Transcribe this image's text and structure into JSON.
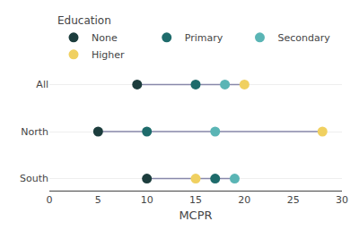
{
  "chart_data": {
    "type": "dot",
    "title": "Education",
    "xlabel": "MCPR",
    "categories": [
      "All",
      "North",
      "South"
    ],
    "series": [
      {
        "name": "None",
        "color": "#1c3d3d",
        "values": [
          9,
          5,
          10
        ]
      },
      {
        "name": "Primary",
        "color": "#1e6b6b",
        "values": [
          15,
          10,
          17
        ]
      },
      {
        "name": "Secondary",
        "color": "#5ab5b5",
        "values": [
          18,
          17,
          19
        ]
      },
      {
        "name": "Higher",
        "color": "#f0d060",
        "values": [
          20,
          28,
          15
        ]
      }
    ],
    "color": "#8888aa",
    "marker": "circle",
    "xlim": [
      0,
      30
    ],
    "xticks": [
      0,
      5,
      10,
      15,
      20,
      25,
      30
    ],
    "grid": true,
    "legend": "top"
  }
}
